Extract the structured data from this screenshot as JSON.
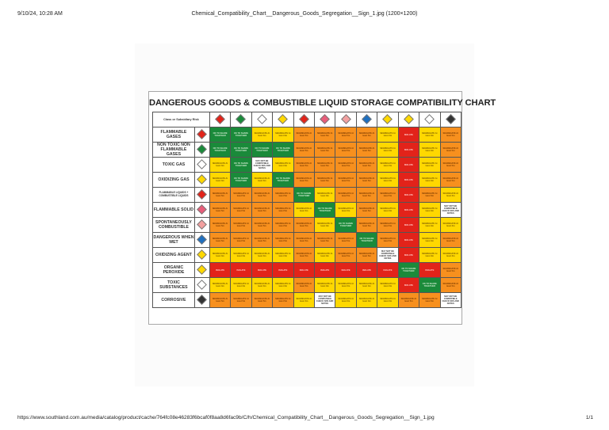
{
  "browser_print": {
    "datetime": "9/10/24, 10:28 AM",
    "document_title": "Chemical_Compatibility_Chart__Dangerous_Goods_Segregation__Sign_1.jpg (1200×1200)",
    "url": "https://www.southland.com.au/media/catalog/product/cache/764fc08e46283f6bcaf0f8aa8d6fac9b/C/h/Chemical_Compatibility_Chart__Dangerous_Goods_Segregation__Sign_1.jpg",
    "page_number": "1/1"
  },
  "sign": {
    "title": "DANGEROUS GOODS & COMBUSTIBLE LIQUID STORAGE COMPATIBILITY CHART",
    "corner_label": "Class or Subsidiary Risk",
    "legend_text": {
      "G": "OK TO SHARE TOGETHER",
      "Y": "SEGREGATE At least 3m",
      "O": "SEGREGATE At least 5m",
      "R": "ISOLATE",
      "W": "MAY NOT BE COMPATIBLE CHECK SDS AND NOTES"
    },
    "colors": {
      "G": "#1a8a3a",
      "Y": "#ffd800",
      "O": "#f7901e",
      "R": "#e2231a",
      "W": "#ffffff"
    },
    "column_icons": [
      {
        "name": "flammable-gas-icon",
        "color": "#e2231a"
      },
      {
        "name": "non-flammable-gas-icon",
        "color": "#1a8a3a"
      },
      {
        "name": "toxic-gas-icon",
        "color": "#ffffff"
      },
      {
        "name": "oxidizing-gas-icon",
        "color": "#ffd800"
      },
      {
        "name": "flammable-liquid-icon",
        "color": "#e2231a"
      },
      {
        "name": "flammable-solid-icon",
        "color": "#e85d7a"
      },
      {
        "name": "spontaneously-combustible-icon",
        "color": "#f2a0a0"
      },
      {
        "name": "dangerous-when-wet-icon",
        "color": "#1f6fbf"
      },
      {
        "name": "oxidizing-agent-icon",
        "color": "#ffd800"
      },
      {
        "name": "organic-peroxide-icon",
        "color": "#ffd800"
      },
      {
        "name": "toxic-substance-icon",
        "color": "#ffffff"
      },
      {
        "name": "corrosive-icon",
        "color": "#333333"
      }
    ],
    "rows": [
      {
        "label": "FLAMMABLE GASES",
        "icon": "flammable-gas-icon",
        "icon_color": "#e2231a",
        "cells": [
          "G",
          "G",
          "Y",
          "Y",
          "O",
          "O",
          "O",
          "O",
          "Y",
          "R",
          "Y",
          "O"
        ]
      },
      {
        "label": "NON TOXIC NON FLAMMABLE GASES",
        "icon": "non-flammable-gas-icon",
        "icon_color": "#1a8a3a",
        "cells": [
          "G",
          "G",
          "G",
          "G",
          "O",
          "O",
          "O",
          "O",
          "Y",
          "R",
          "Y",
          "O"
        ]
      },
      {
        "label": "TOXIC GAS",
        "icon": "toxic-gas-icon",
        "icon_color": "#ffffff",
        "cells": [
          "Y",
          "G",
          "W",
          "Y",
          "O",
          "O",
          "O",
          "O",
          "Y",
          "R",
          "Y",
          "O"
        ]
      },
      {
        "label": "OXIDIZING GAS",
        "icon": "oxidizing-gas-icon",
        "icon_color": "#ffd800",
        "cells": [
          "Y",
          "G",
          "Y",
          "G",
          "O",
          "O",
          "O",
          "O",
          "Y",
          "R",
          "Y",
          "O"
        ]
      },
      {
        "label": "FLAMMABLE LIQUIDS + COMBUSTIBLE LIQUIDS",
        "icon": "flammable-liquid-icon",
        "icon_color": "#e2231a",
        "small": true,
        "cells": [
          "O",
          "O",
          "O",
          "O",
          "G",
          "Y",
          "O",
          "O",
          "O",
          "R",
          "O",
          "Y"
        ]
      },
      {
        "label": "FLAMMABLE SOLID",
        "icon": "flammable-solid-icon",
        "icon_color": "#e85d7a",
        "cells": [
          "O",
          "O",
          "O",
          "O",
          "Y",
          "G",
          "Y",
          "O",
          "Y",
          "R",
          "Y",
          "W"
        ]
      },
      {
        "label": "SPONTANEOUSLY COMBUSTIBLE",
        "icon": "spontaneously-combustible-icon",
        "icon_color": "#f2a0a0",
        "cells": [
          "O",
          "O",
          "O",
          "O",
          "O",
          "Y",
          "G",
          "O",
          "O",
          "R",
          "Y",
          "Y"
        ]
      },
      {
        "label": "DANGEROUS WHEN WET",
        "icon": "dangerous-when-wet-icon",
        "icon_color": "#1f6fbf",
        "cells": [
          "O",
          "O",
          "O",
          "O",
          "O",
          "O",
          "O",
          "G",
          "O",
          "R",
          "Y",
          "O"
        ]
      },
      {
        "label": "OXIDIZING AGENT",
        "icon": "oxidizing-agent-icon",
        "icon_color": "#ffd800",
        "cells": [
          "Y",
          "Y",
          "Y",
          "Y",
          "O",
          "Y",
          "O",
          "O",
          "W",
          "R",
          "Y",
          "Y"
        ]
      },
      {
        "label": "ORGANIC PEROXIDE",
        "icon": "organic-peroxide-icon",
        "icon_color": "#ffd800",
        "cells": [
          "R",
          "R",
          "R",
          "R",
          "R",
          "R",
          "R",
          "R",
          "R",
          "G",
          "R",
          "O"
        ]
      },
      {
        "label": "TOXIC SUBSTANCES",
        "icon": "toxic-substance-icon",
        "icon_color": "#ffffff",
        "cells": [
          "Y",
          "Y",
          "Y",
          "Y",
          "O",
          "Y",
          "Y",
          "Y",
          "Y",
          "R",
          "G",
          "O"
        ]
      },
      {
        "label": "CORROSIVE",
        "icon": "corrosive-icon",
        "icon_color": "#333333",
        "cells": [
          "O",
          "O",
          "O",
          "O",
          "Y",
          "W",
          "Y",
          "Y",
          "Y",
          "O",
          "O",
          "W"
        ]
      }
    ]
  }
}
